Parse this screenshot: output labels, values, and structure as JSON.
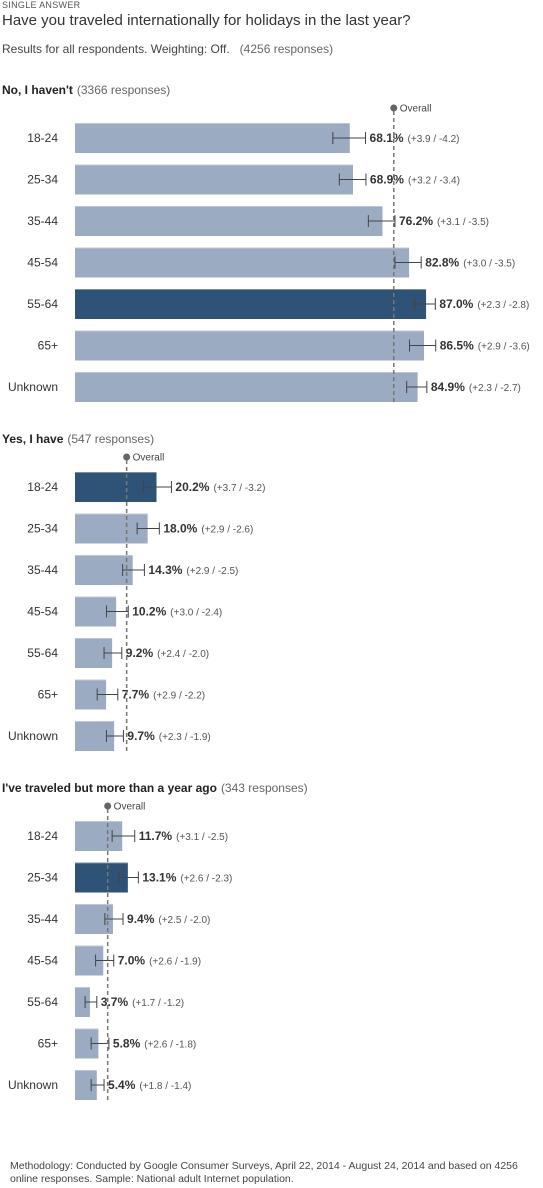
{
  "header": {
    "kicker": "SINGLE ANSWER",
    "question": "Have you traveled internationally for holidays in the last year?",
    "subtitle": "Results for all respondents. Weighting: Off.",
    "responses": "(4256 responses)"
  },
  "footer": {
    "methodology": "Methodology: Conducted by Google Consumer Surveys, April 22, 2014 - August 24, 2014 and based on 4256 online responses. Sample: National adult Internet population."
  },
  "colors": {
    "bar": "#9aabc2",
    "bar_highlight": "#2f5277",
    "overall_line": "#777777"
  },
  "chart_data": [
    {
      "type": "bar",
      "orientation": "horizontal",
      "title": "No, I haven't",
      "responses": "(3366 responses)",
      "overall_label": "Overall",
      "overall": 79.0,
      "categories": [
        "18-24",
        "25-34",
        "35-44",
        "45-54",
        "55-64",
        "65+",
        "Unknown"
      ],
      "values": [
        68.1,
        68.9,
        76.2,
        82.8,
        87.0,
        86.5,
        84.9
      ],
      "value_labels": [
        "68.1%",
        "68.9%",
        "76.2%",
        "82.8%",
        "87.0%",
        "86.5%",
        "84.9%"
      ],
      "error_plus": [
        3.9,
        3.2,
        3.1,
        3.0,
        2.3,
        2.9,
        2.3
      ],
      "error_minus": [
        4.2,
        3.4,
        3.5,
        3.5,
        2.8,
        3.6,
        2.7
      ],
      "ci_labels": [
        "(+3.9 / -4.2)",
        "(+3.2 / -3.4)",
        "(+3.1 / -3.5)",
        "(+3.0 / -3.5)",
        "(+2.3 / -2.8)",
        "(+2.9 / -3.6)",
        "(+2.3 / -2.7)"
      ],
      "highlight": "55-64"
    },
    {
      "type": "bar",
      "orientation": "horizontal",
      "title": "Yes, I have",
      "responses": "(547 responses)",
      "overall_label": "Overall",
      "overall": 12.8,
      "categories": [
        "18-24",
        "25-34",
        "35-44",
        "45-54",
        "55-64",
        "65+",
        "Unknown"
      ],
      "values": [
        20.2,
        18.0,
        14.3,
        10.2,
        9.2,
        7.7,
        9.7
      ],
      "value_labels": [
        "20.2%",
        "18.0%",
        "14.3%",
        "10.2%",
        "9.2%",
        "7.7%",
        "9.7%"
      ],
      "error_plus": [
        3.7,
        2.9,
        2.9,
        3.0,
        2.4,
        2.9,
        2.3
      ],
      "error_minus": [
        3.2,
        2.6,
        2.5,
        2.4,
        2.0,
        2.2,
        1.9
      ],
      "ci_labels": [
        "(+3.7 / -3.2)",
        "(+2.9 / -2.6)",
        "(+2.9 / -2.5)",
        "(+3.0 / -2.4)",
        "(+2.4 / -2.0)",
        "(+2.9 / -2.2)",
        "(+2.3 / -1.9)"
      ],
      "highlight": "18-24"
    },
    {
      "type": "bar",
      "orientation": "horizontal",
      "title": "I've traveled but more than a year ago",
      "responses": "(343 responses)",
      "overall_label": "Overall",
      "overall": 8.1,
      "categories": [
        "18-24",
        "25-34",
        "35-44",
        "45-54",
        "55-64",
        "65+",
        "Unknown"
      ],
      "values": [
        11.7,
        13.1,
        9.4,
        7.0,
        3.7,
        5.8,
        5.4
      ],
      "value_labels": [
        "11.7%",
        "13.1%",
        "9.4%",
        "7.0%",
        "3.7%",
        "5.8%",
        "5.4%"
      ],
      "error_plus": [
        3.1,
        2.6,
        2.5,
        2.6,
        1.7,
        2.6,
        1.8
      ],
      "error_minus": [
        2.5,
        2.3,
        2.0,
        1.9,
        1.2,
        1.8,
        1.4
      ],
      "ci_labels": [
        "(+3.1 / -2.5)",
        "(+2.6 / -2.3)",
        "(+2.5 / -2.0)",
        "(+2.6 / -1.9)",
        "(+1.7 / -1.2)",
        "(+2.6 / -1.8)",
        "(+1.8 / -1.4)"
      ],
      "highlight": "25-34"
    }
  ]
}
